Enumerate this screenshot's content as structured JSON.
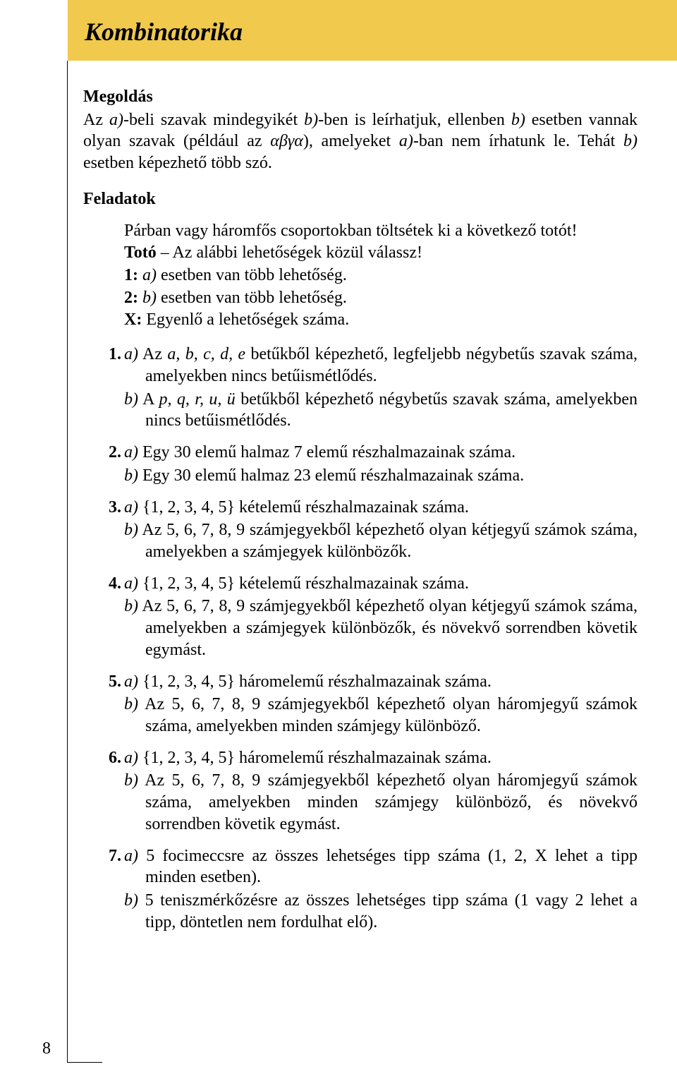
{
  "header": {
    "title": "Kombinatorika"
  },
  "solution": {
    "heading": "Megoldás",
    "para_parts": [
      "Az ",
      {
        "i": true,
        "t": "a)"
      },
      "-beli szavak mindegyikét ",
      {
        "i": true,
        "t": "b)"
      },
      "-ben is leírhatjuk, ellenben ",
      {
        "i": true,
        "t": "b)"
      },
      " esetben vannak olyan szavak (például az ",
      {
        "g": true,
        "t": "αβγα"
      },
      "), amelyeket ",
      {
        "i": true,
        "t": "a)"
      },
      "-ban nem írhatunk le. Tehát ",
      {
        "i": true,
        "t": "b)"
      },
      " esetben képezhető több szó."
    ]
  },
  "tasks_heading": "Feladatok",
  "intro": [
    [
      {
        "t": "Párban vagy háromfős csoportokban töltsétek ki a következő totót!"
      }
    ],
    [
      {
        "b": true,
        "t": "Totó"
      },
      {
        "t": " – Az alábbi lehetőségek közül válassz!"
      }
    ],
    [
      {
        "b": true,
        "t": "1:"
      },
      {
        "t": " "
      },
      {
        "i": true,
        "t": "a)"
      },
      {
        "t": " esetben van több lehetőség."
      }
    ],
    [
      {
        "b": true,
        "t": "2:"
      },
      {
        "t": " "
      },
      {
        "i": true,
        "t": "b)"
      },
      {
        "t": " esetben van több lehetőség."
      }
    ],
    [
      {
        "b": true,
        "t": "X:"
      },
      {
        "t": " Egyenlő a lehetőségek száma."
      }
    ]
  ],
  "tasks": [
    {
      "num": "1.",
      "subs": [
        [
          {
            "i": true,
            "t": "a)"
          },
          {
            "t": " Az "
          },
          {
            "i": true,
            "t": "a, b, c, d, e"
          },
          {
            "t": " betűkből képezhető, legfeljebb négybetűs szavak száma, amelyekben nincs betűismétlődés."
          }
        ],
        [
          {
            "i": true,
            "t": "b)"
          },
          {
            "t": " A "
          },
          {
            "i": true,
            "t": "p, q, r, u, ü"
          },
          {
            "t": " betűkből képezhető négybetűs szavak száma, amelyekben nincs betűismétlődés."
          }
        ]
      ]
    },
    {
      "num": "2.",
      "subs": [
        [
          {
            "i": true,
            "t": "a)"
          },
          {
            "t": " Egy 30 elemű halmaz 7 elemű részhalmazainak száma."
          }
        ],
        [
          {
            "i": true,
            "t": "b)"
          },
          {
            "t": " Egy 30 elemű halmaz 23 elemű részhalmazainak száma."
          }
        ]
      ]
    },
    {
      "num": "3.",
      "subs": [
        [
          {
            "i": true,
            "t": "a)"
          },
          {
            "t": " {1, 2, 3, 4, 5} kételemű részhalmazainak száma."
          }
        ],
        [
          {
            "i": true,
            "t": "b)"
          },
          {
            "t": " Az 5, 6, 7, 8, 9 számjegyekből képezhető olyan kétjegyű számok száma, amelyekben a számjegyek különbözők."
          }
        ]
      ]
    },
    {
      "num": "4.",
      "subs": [
        [
          {
            "i": true,
            "t": "a)"
          },
          {
            "t": " {1, 2, 3, 4, 5} kételemű részhalmazainak száma."
          }
        ],
        [
          {
            "i": true,
            "t": "b)"
          },
          {
            "t": " Az 5, 6, 7, 8, 9 számjegyekből képezhető olyan kétjegyű számok száma, amelyekben a számjegyek különbözők, és növekvő sorrendben követik egymást."
          }
        ]
      ]
    },
    {
      "num": "5.",
      "subs": [
        [
          {
            "i": true,
            "t": "a)"
          },
          {
            "t": " {1, 2, 3, 4, 5} háromelemű részhalmazainak száma."
          }
        ],
        [
          {
            "i": true,
            "t": "b)"
          },
          {
            "t": " Az 5, 6, 7, 8, 9 számjegyekből képezhető olyan háromjegyű számok száma, amelyekben minden számjegy különböző."
          }
        ]
      ]
    },
    {
      "num": "6.",
      "subs": [
        [
          {
            "i": true,
            "t": "a)"
          },
          {
            "t": " {1, 2, 3, 4, 5} háromelemű részhalmazainak száma."
          }
        ],
        [
          {
            "i": true,
            "t": "b)"
          },
          {
            "t": " Az 5, 6, 7, 8, 9 számjegyekből képezhető olyan háromjegyű számok száma, amelyekben minden számjegy különböző, és növekvő sorrendben követik egymást."
          }
        ]
      ]
    },
    {
      "num": "7.",
      "subs": [
        [
          {
            "i": true,
            "t": "a)"
          },
          {
            "t": " 5 focimeccsre az összes lehetséges tipp száma (1, 2, X lehet a tipp minden esetben)."
          }
        ],
        [
          {
            "i": true,
            "t": "b)"
          },
          {
            "t": " 5 teniszmérkőzésre az összes lehetséges tipp száma (1 vagy 2 lehet a tipp, döntetlen nem fordulhat elő)."
          }
        ]
      ]
    }
  ],
  "page_number": "8",
  "colors": {
    "band": "#f0c94d",
    "text": "#000000",
    "page_bg": "#ffffff"
  }
}
